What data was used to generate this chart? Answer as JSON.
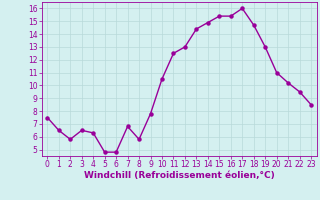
{
  "x": [
    0,
    1,
    2,
    3,
    4,
    5,
    6,
    7,
    8,
    9,
    10,
    11,
    12,
    13,
    14,
    15,
    16,
    17,
    18,
    19,
    20,
    21,
    22,
    23
  ],
  "y": [
    7.5,
    6.5,
    5.8,
    6.5,
    6.3,
    4.8,
    4.8,
    6.8,
    5.8,
    7.8,
    10.5,
    12.5,
    13.0,
    14.4,
    14.9,
    15.4,
    15.4,
    16.0,
    14.7,
    13.0,
    11.0,
    10.2,
    9.5,
    8.5
  ],
  "line_color": "#990099",
  "marker": "o",
  "markersize": 2.2,
  "linewidth": 1.0,
  "background_color": "#d4f0f0",
  "grid_color": "#b8dada",
  "xlabel": "Windchill (Refroidissement éolien,°C)",
  "xlabel_fontsize": 6.5,
  "xlabel_color": "#990099",
  "tick_color": "#990099",
  "tick_fontsize": 5.5,
  "xlim": [
    -0.5,
    23.5
  ],
  "ylim": [
    4.5,
    16.5
  ],
  "yticks": [
    5,
    6,
    7,
    8,
    9,
    10,
    11,
    12,
    13,
    14,
    15,
    16
  ],
  "xticks": [
    0,
    1,
    2,
    3,
    4,
    5,
    6,
    7,
    8,
    9,
    10,
    11,
    12,
    13,
    14,
    15,
    16,
    17,
    18,
    19,
    20,
    21,
    22,
    23
  ]
}
